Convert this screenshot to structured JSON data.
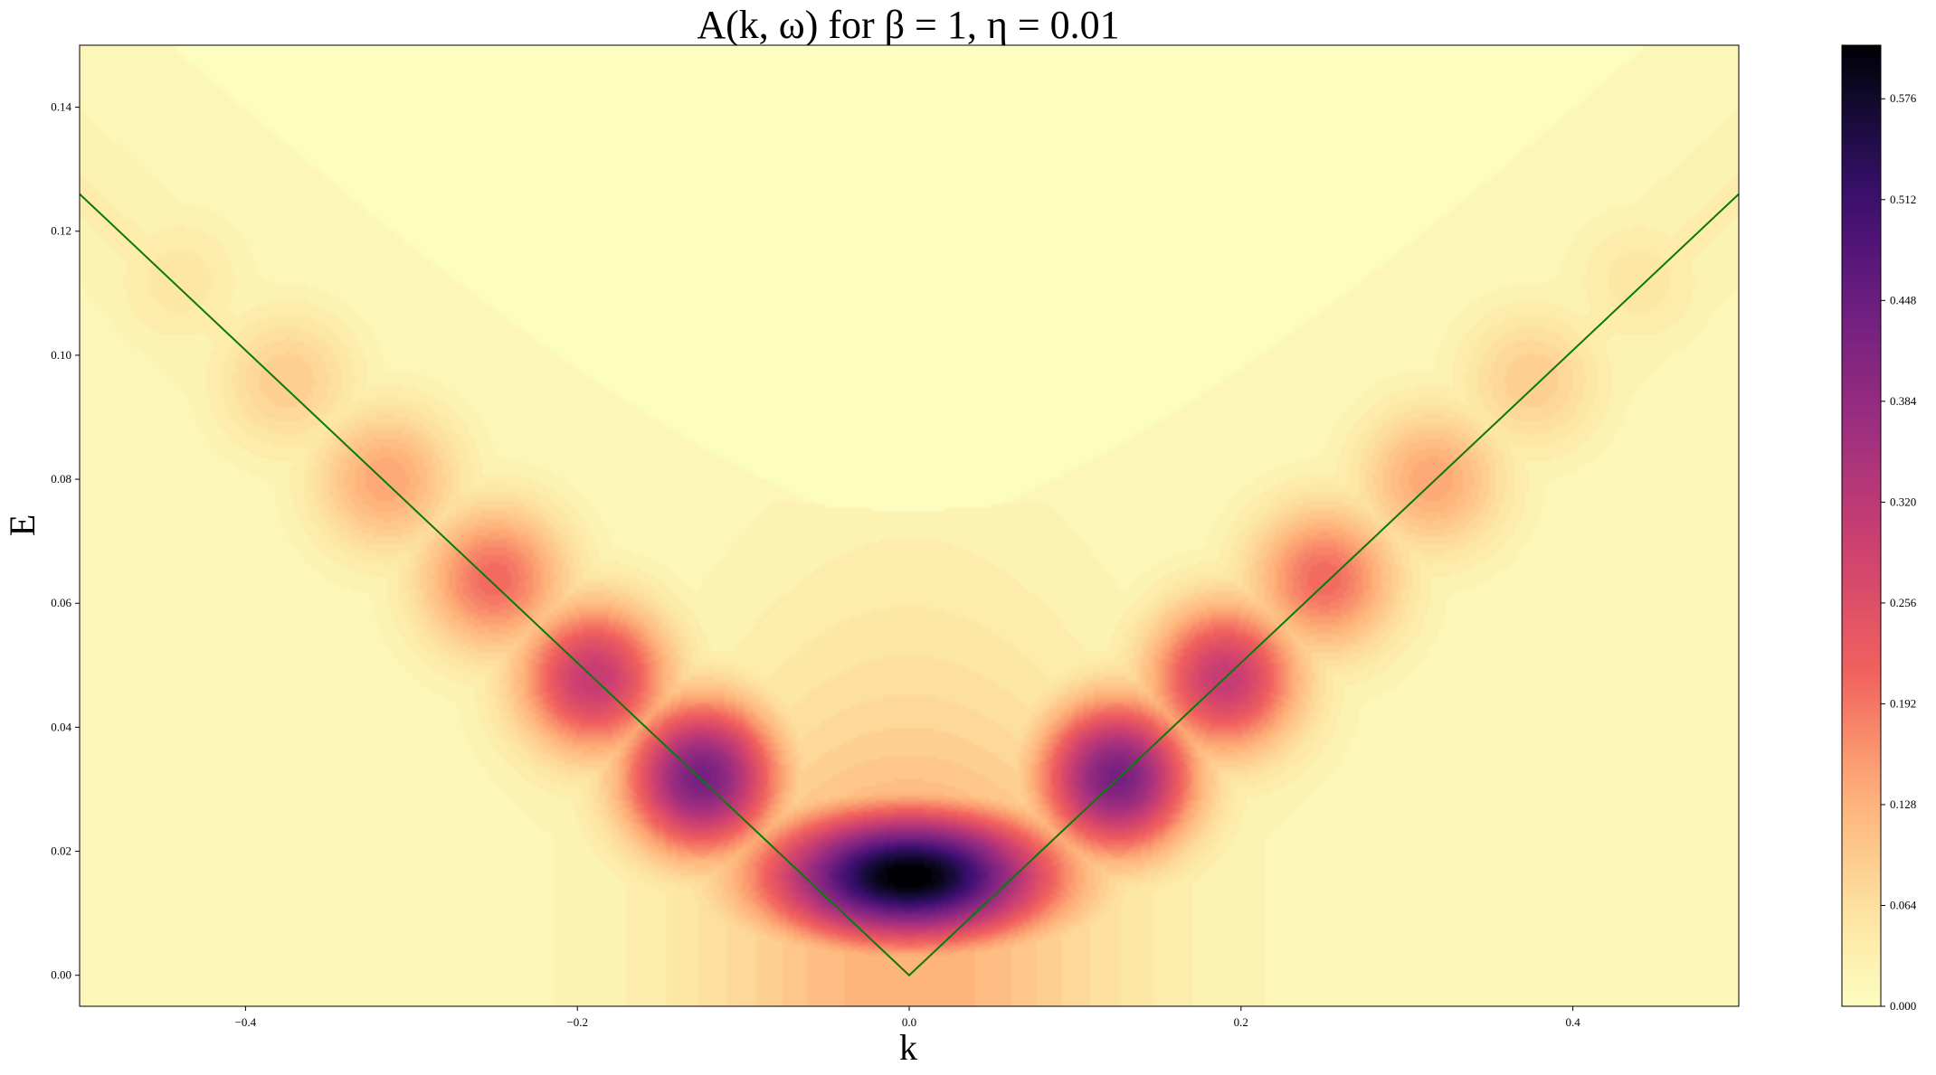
{
  "chart_data": {
    "type": "heatmap",
    "title": "A(k, ω) for β = 1, η = 0.01",
    "xlabel": "k",
    "ylabel": "E",
    "xlim": [
      -0.5,
      0.5
    ],
    "ylim": [
      -0.005,
      0.15
    ],
    "x_ticks": [
      -0.4,
      -0.2,
      0.0,
      0.2,
      0.4
    ],
    "x_tick_labels": [
      "−0.4",
      "−0.2",
      "0.0",
      "0.2",
      "0.4"
    ],
    "y_ticks": [
      0.0,
      0.02,
      0.04,
      0.06,
      0.08,
      0.1,
      0.12,
      0.14
    ],
    "y_tick_labels": [
      "0.00",
      "0.02",
      "0.04",
      "0.06",
      "0.08",
      "0.10",
      "0.12",
      "0.14"
    ],
    "colormap": "magma_r",
    "colorbar": {
      "range": [
        0.0,
        0.61
      ],
      "ticks": [
        0.0,
        0.064,
        0.128,
        0.192,
        0.256,
        0.32,
        0.384,
        0.448,
        0.512,
        0.576
      ],
      "tick_labels": [
        "0.000",
        "0.064",
        "0.128",
        "0.192",
        "0.256",
        "0.320",
        "0.384",
        "0.448",
        "0.512",
        "0.576"
      ]
    },
    "dispersion_line": {
      "color": "#0a7a0a",
      "x": [
        -0.5,
        0.0,
        0.5
      ],
      "y": [
        0.126,
        0.0,
        0.126
      ]
    },
    "intensity_peaks": [
      {
        "k": 0.0,
        "E": 0.016,
        "value": 0.61
      },
      {
        "k": -0.125,
        "E": 0.032,
        "value": 0.42
      },
      {
        "k": 0.125,
        "E": 0.032,
        "value": 0.42
      },
      {
        "k": -0.19,
        "E": 0.048,
        "value": 0.3
      },
      {
        "k": 0.19,
        "E": 0.048,
        "value": 0.3
      },
      {
        "k": -0.25,
        "E": 0.064,
        "value": 0.2
      },
      {
        "k": 0.25,
        "E": 0.064,
        "value": 0.2
      },
      {
        "k": -0.315,
        "E": 0.08,
        "value": 0.14
      },
      {
        "k": 0.315,
        "E": 0.08,
        "value": 0.14
      },
      {
        "k": -0.375,
        "E": 0.096,
        "value": 0.09
      },
      {
        "k": 0.375,
        "E": 0.096,
        "value": 0.09
      },
      {
        "k": -0.44,
        "E": 0.112,
        "value": 0.05
      },
      {
        "k": 0.44,
        "E": 0.112,
        "value": 0.05
      }
    ]
  }
}
